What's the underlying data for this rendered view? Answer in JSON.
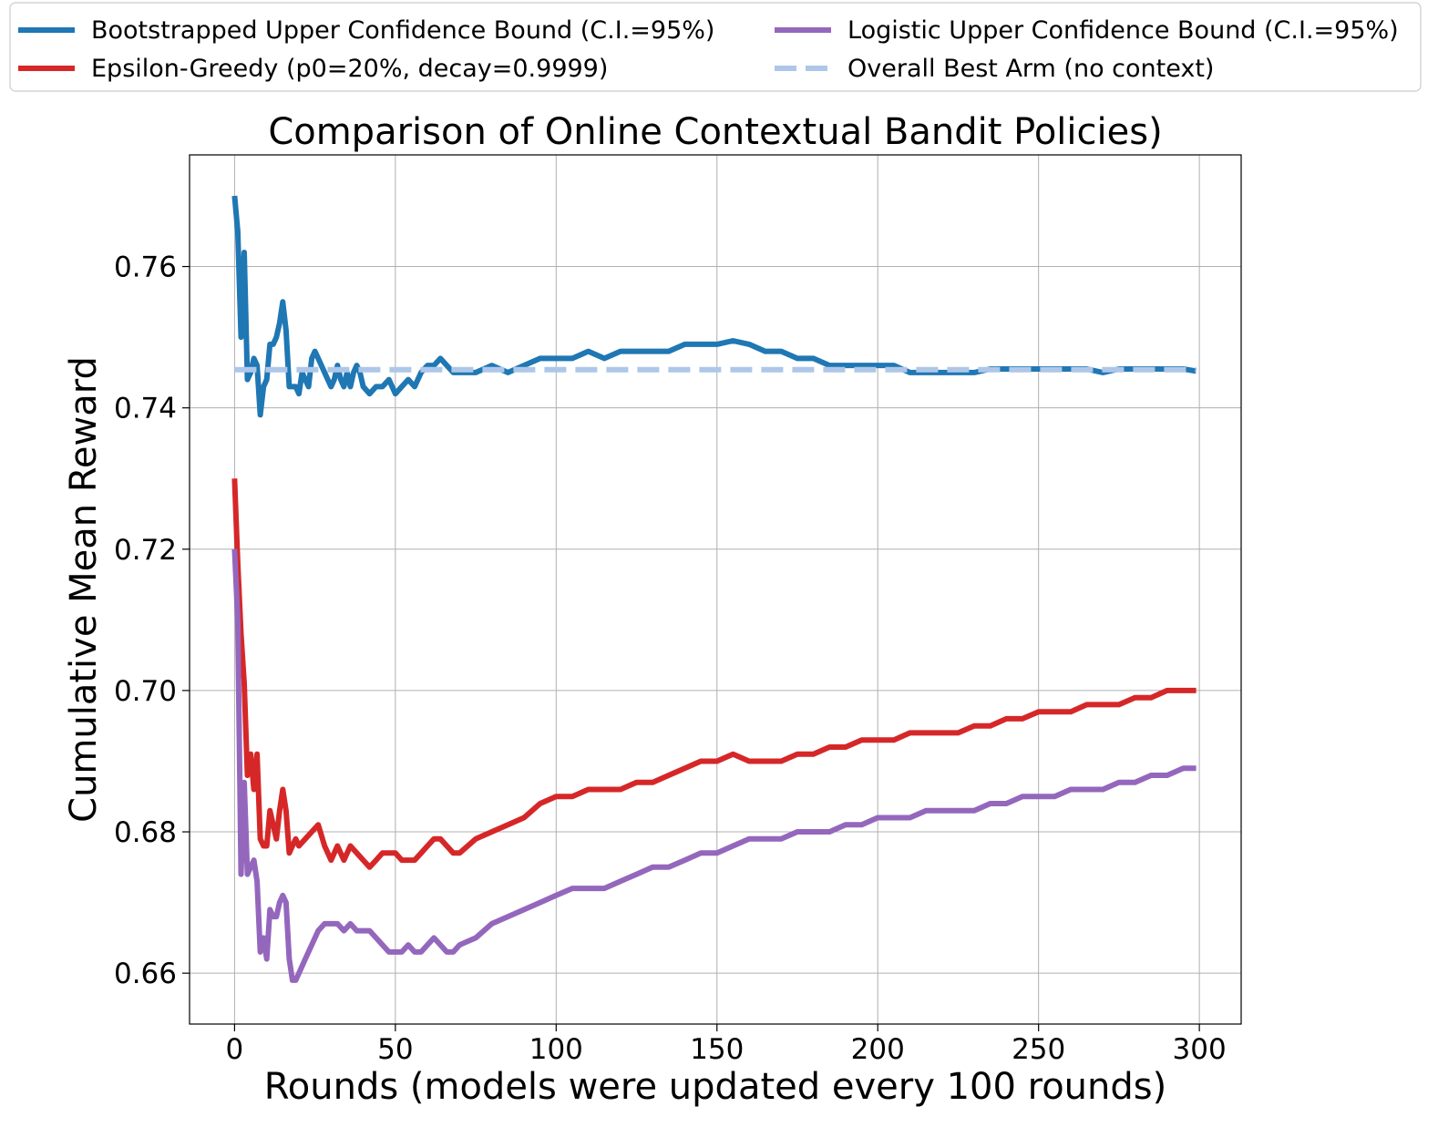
{
  "chart_data": {
    "type": "line",
    "title": "Comparison of Online Contextual Bandit Policies)",
    "xlabel": "Rounds (models were updated every 100 rounds)",
    "ylabel": "Cumulative Mean Reward",
    "xlim": [
      -14,
      313
    ],
    "ylim": [
      0.6528,
      0.7758
    ],
    "x_ticks": [
      0,
      50,
      100,
      150,
      200,
      250,
      300
    ],
    "y_ticks": [
      0.66,
      0.68,
      0.7,
      0.72,
      0.74,
      0.76
    ],
    "x_tick_labels": [
      "0",
      "50",
      "100",
      "150",
      "200",
      "250",
      "300"
    ],
    "y_tick_labels": [
      "0.66",
      "0.68",
      "0.70",
      "0.72",
      "0.74",
      "0.76"
    ],
    "grid": true,
    "legend_position": "top, above plot, 2 columns",
    "series": [
      {
        "name": "Bootstrapped Upper Confidence Bound (C.I.=95%)",
        "color": "#1f77b4",
        "style": "solid",
        "points": [
          [
            0,
            0.77
          ],
          [
            1,
            0.765
          ],
          [
            2,
            0.75
          ],
          [
            3,
            0.762
          ],
          [
            4,
            0.744
          ],
          [
            5,
            0.745
          ],
          [
            6,
            0.747
          ],
          [
            7,
            0.746
          ],
          [
            8,
            0.739
          ],
          [
            9,
            0.743
          ],
          [
            10,
            0.744
          ],
          [
            11,
            0.749
          ],
          [
            12,
            0.749
          ],
          [
            13,
            0.75
          ],
          [
            14,
            0.752
          ],
          [
            15,
            0.755
          ],
          [
            16,
            0.751
          ],
          [
            17,
            0.743
          ],
          [
            18,
            0.743
          ],
          [
            19,
            0.743
          ],
          [
            20,
            0.742
          ],
          [
            21,
            0.745
          ],
          [
            22,
            0.744
          ],
          [
            23,
            0.743
          ],
          [
            24,
            0.747
          ],
          [
            25,
            0.748
          ],
          [
            26,
            0.747
          ],
          [
            27,
            0.746
          ],
          [
            28,
            0.745
          ],
          [
            29,
            0.744
          ],
          [
            30,
            0.743
          ],
          [
            31,
            0.744
          ],
          [
            32,
            0.746
          ],
          [
            33,
            0.744
          ],
          [
            34,
            0.743
          ],
          [
            35,
            0.745
          ],
          [
            36,
            0.743
          ],
          [
            37,
            0.745
          ],
          [
            38,
            0.746
          ],
          [
            39,
            0.745
          ],
          [
            40,
            0.743
          ],
          [
            42,
            0.742
          ],
          [
            44,
            0.743
          ],
          [
            46,
            0.743
          ],
          [
            48,
            0.744
          ],
          [
            50,
            0.742
          ],
          [
            52,
            0.743
          ],
          [
            54,
            0.744
          ],
          [
            56,
            0.743
          ],
          [
            58,
            0.745
          ],
          [
            60,
            0.746
          ],
          [
            62,
            0.746
          ],
          [
            64,
            0.747
          ],
          [
            66,
            0.746
          ],
          [
            68,
            0.745
          ],
          [
            70,
            0.745
          ],
          [
            75,
            0.745
          ],
          [
            80,
            0.746
          ],
          [
            85,
            0.745
          ],
          [
            90,
            0.746
          ],
          [
            95,
            0.747
          ],
          [
            100,
            0.747
          ],
          [
            105,
            0.747
          ],
          [
            110,
            0.748
          ],
          [
            115,
            0.747
          ],
          [
            120,
            0.748
          ],
          [
            125,
            0.748
          ],
          [
            130,
            0.748
          ],
          [
            135,
            0.748
          ],
          [
            140,
            0.749
          ],
          [
            145,
            0.749
          ],
          [
            150,
            0.749
          ],
          [
            155,
            0.7495
          ],
          [
            160,
            0.749
          ],
          [
            165,
            0.748
          ],
          [
            170,
            0.748
          ],
          [
            175,
            0.747
          ],
          [
            180,
            0.747
          ],
          [
            185,
            0.746
          ],
          [
            190,
            0.746
          ],
          [
            195,
            0.746
          ],
          [
            200,
            0.746
          ],
          [
            205,
            0.746
          ],
          [
            210,
            0.745
          ],
          [
            215,
            0.745
          ],
          [
            220,
            0.745
          ],
          [
            225,
            0.745
          ],
          [
            230,
            0.745
          ],
          [
            235,
            0.7455
          ],
          [
            240,
            0.7455
          ],
          [
            245,
            0.7455
          ],
          [
            250,
            0.7455
          ],
          [
            255,
            0.7455
          ],
          [
            260,
            0.7455
          ],
          [
            265,
            0.7455
          ],
          [
            270,
            0.745
          ],
          [
            275,
            0.7455
          ],
          [
            280,
            0.7455
          ],
          [
            285,
            0.7455
          ],
          [
            290,
            0.7455
          ],
          [
            295,
            0.7455
          ],
          [
            299,
            0.7452
          ]
        ]
      },
      {
        "name": "Epsilon-Greedy (p0=20%, decay=0.9999)",
        "color": "#d62728",
        "style": "solid",
        "points": [
          [
            0,
            0.73
          ],
          [
            1,
            0.718
          ],
          [
            2,
            0.708
          ],
          [
            3,
            0.701
          ],
          [
            4,
            0.688
          ],
          [
            5,
            0.691
          ],
          [
            6,
            0.686
          ],
          [
            7,
            0.691
          ],
          [
            8,
            0.679
          ],
          [
            9,
            0.678
          ],
          [
            10,
            0.678
          ],
          [
            11,
            0.683
          ],
          [
            12,
            0.681
          ],
          [
            13,
            0.679
          ],
          [
            14,
            0.683
          ],
          [
            15,
            0.686
          ],
          [
            16,
            0.683
          ],
          [
            17,
            0.677
          ],
          [
            18,
            0.678
          ],
          [
            19,
            0.679
          ],
          [
            20,
            0.678
          ],
          [
            22,
            0.679
          ],
          [
            24,
            0.68
          ],
          [
            26,
            0.681
          ],
          [
            28,
            0.678
          ],
          [
            30,
            0.676
          ],
          [
            32,
            0.678
          ],
          [
            34,
            0.676
          ],
          [
            36,
            0.678
          ],
          [
            38,
            0.677
          ],
          [
            40,
            0.676
          ],
          [
            42,
            0.675
          ],
          [
            44,
            0.676
          ],
          [
            46,
            0.677
          ],
          [
            48,
            0.677
          ],
          [
            50,
            0.677
          ],
          [
            52,
            0.676
          ],
          [
            54,
            0.676
          ],
          [
            56,
            0.676
          ],
          [
            58,
            0.677
          ],
          [
            60,
            0.678
          ],
          [
            62,
            0.679
          ],
          [
            64,
            0.679
          ],
          [
            66,
            0.678
          ],
          [
            68,
            0.677
          ],
          [
            70,
            0.677
          ],
          [
            75,
            0.679
          ],
          [
            80,
            0.68
          ],
          [
            85,
            0.681
          ],
          [
            90,
            0.682
          ],
          [
            95,
            0.684
          ],
          [
            100,
            0.685
          ],
          [
            105,
            0.685
          ],
          [
            110,
            0.686
          ],
          [
            115,
            0.686
          ],
          [
            120,
            0.686
          ],
          [
            125,
            0.687
          ],
          [
            130,
            0.687
          ],
          [
            135,
            0.688
          ],
          [
            140,
            0.689
          ],
          [
            145,
            0.69
          ],
          [
            150,
            0.69
          ],
          [
            155,
            0.691
          ],
          [
            160,
            0.69
          ],
          [
            165,
            0.69
          ],
          [
            170,
            0.69
          ],
          [
            175,
            0.691
          ],
          [
            180,
            0.691
          ],
          [
            185,
            0.692
          ],
          [
            190,
            0.692
          ],
          [
            195,
            0.693
          ],
          [
            200,
            0.693
          ],
          [
            205,
            0.693
          ],
          [
            210,
            0.694
          ],
          [
            215,
            0.694
          ],
          [
            220,
            0.694
          ],
          [
            225,
            0.694
          ],
          [
            230,
            0.695
          ],
          [
            235,
            0.695
          ],
          [
            240,
            0.696
          ],
          [
            245,
            0.696
          ],
          [
            250,
            0.697
          ],
          [
            255,
            0.697
          ],
          [
            260,
            0.697
          ],
          [
            265,
            0.698
          ],
          [
            270,
            0.698
          ],
          [
            275,
            0.698
          ],
          [
            280,
            0.699
          ],
          [
            285,
            0.699
          ],
          [
            290,
            0.7
          ],
          [
            295,
            0.7
          ],
          [
            299,
            0.7
          ]
        ]
      },
      {
        "name": "Logistic Upper Confidence Bound (C.I.=95%)",
        "color": "#9467bd",
        "style": "solid",
        "points": [
          [
            0,
            0.72
          ],
          [
            1,
            0.71
          ],
          [
            2,
            0.674
          ],
          [
            3,
            0.687
          ],
          [
            4,
            0.674
          ],
          [
            5,
            0.675
          ],
          [
            6,
            0.676
          ],
          [
            7,
            0.673
          ],
          [
            8,
            0.663
          ],
          [
            9,
            0.665
          ],
          [
            10,
            0.662
          ],
          [
            11,
            0.669
          ],
          [
            12,
            0.668
          ],
          [
            13,
            0.668
          ],
          [
            14,
            0.67
          ],
          [
            15,
            0.671
          ],
          [
            16,
            0.67
          ],
          [
            17,
            0.662
          ],
          [
            18,
            0.659
          ],
          [
            19,
            0.659
          ],
          [
            20,
            0.66
          ],
          [
            22,
            0.662
          ],
          [
            24,
            0.664
          ],
          [
            26,
            0.666
          ],
          [
            28,
            0.667
          ],
          [
            30,
            0.667
          ],
          [
            32,
            0.667
          ],
          [
            34,
            0.666
          ],
          [
            36,
            0.667
          ],
          [
            38,
            0.666
          ],
          [
            40,
            0.666
          ],
          [
            42,
            0.666
          ],
          [
            44,
            0.665
          ],
          [
            46,
            0.664
          ],
          [
            48,
            0.663
          ],
          [
            50,
            0.663
          ],
          [
            52,
            0.663
          ],
          [
            54,
            0.664
          ],
          [
            56,
            0.663
          ],
          [
            58,
            0.663
          ],
          [
            60,
            0.664
          ],
          [
            62,
            0.665
          ],
          [
            64,
            0.664
          ],
          [
            66,
            0.663
          ],
          [
            68,
            0.663
          ],
          [
            70,
            0.664
          ],
          [
            75,
            0.665
          ],
          [
            80,
            0.667
          ],
          [
            85,
            0.668
          ],
          [
            90,
            0.669
          ],
          [
            95,
            0.67
          ],
          [
            100,
            0.671
          ],
          [
            105,
            0.672
          ],
          [
            110,
            0.672
          ],
          [
            115,
            0.672
          ],
          [
            120,
            0.673
          ],
          [
            125,
            0.674
          ],
          [
            130,
            0.675
          ],
          [
            135,
            0.675
          ],
          [
            140,
            0.676
          ],
          [
            145,
            0.677
          ],
          [
            150,
            0.677
          ],
          [
            155,
            0.678
          ],
          [
            160,
            0.679
          ],
          [
            165,
            0.679
          ],
          [
            170,
            0.679
          ],
          [
            175,
            0.68
          ],
          [
            180,
            0.68
          ],
          [
            185,
            0.68
          ],
          [
            190,
            0.681
          ],
          [
            195,
            0.681
          ],
          [
            200,
            0.682
          ],
          [
            205,
            0.682
          ],
          [
            210,
            0.682
          ],
          [
            215,
            0.683
          ],
          [
            220,
            0.683
          ],
          [
            225,
            0.683
          ],
          [
            230,
            0.683
          ],
          [
            235,
            0.684
          ],
          [
            240,
            0.684
          ],
          [
            245,
            0.685
          ],
          [
            250,
            0.685
          ],
          [
            255,
            0.685
          ],
          [
            260,
            0.686
          ],
          [
            265,
            0.686
          ],
          [
            270,
            0.686
          ],
          [
            275,
            0.687
          ],
          [
            280,
            0.687
          ],
          [
            285,
            0.688
          ],
          [
            290,
            0.688
          ],
          [
            295,
            0.689
          ],
          [
            299,
            0.689
          ]
        ]
      },
      {
        "name": "Overall Best Arm (no context)",
        "color": "#aec7e8",
        "style": "dashed",
        "points": [
          [
            0,
            0.7454
          ],
          [
            299,
            0.7454
          ]
        ]
      }
    ]
  }
}
